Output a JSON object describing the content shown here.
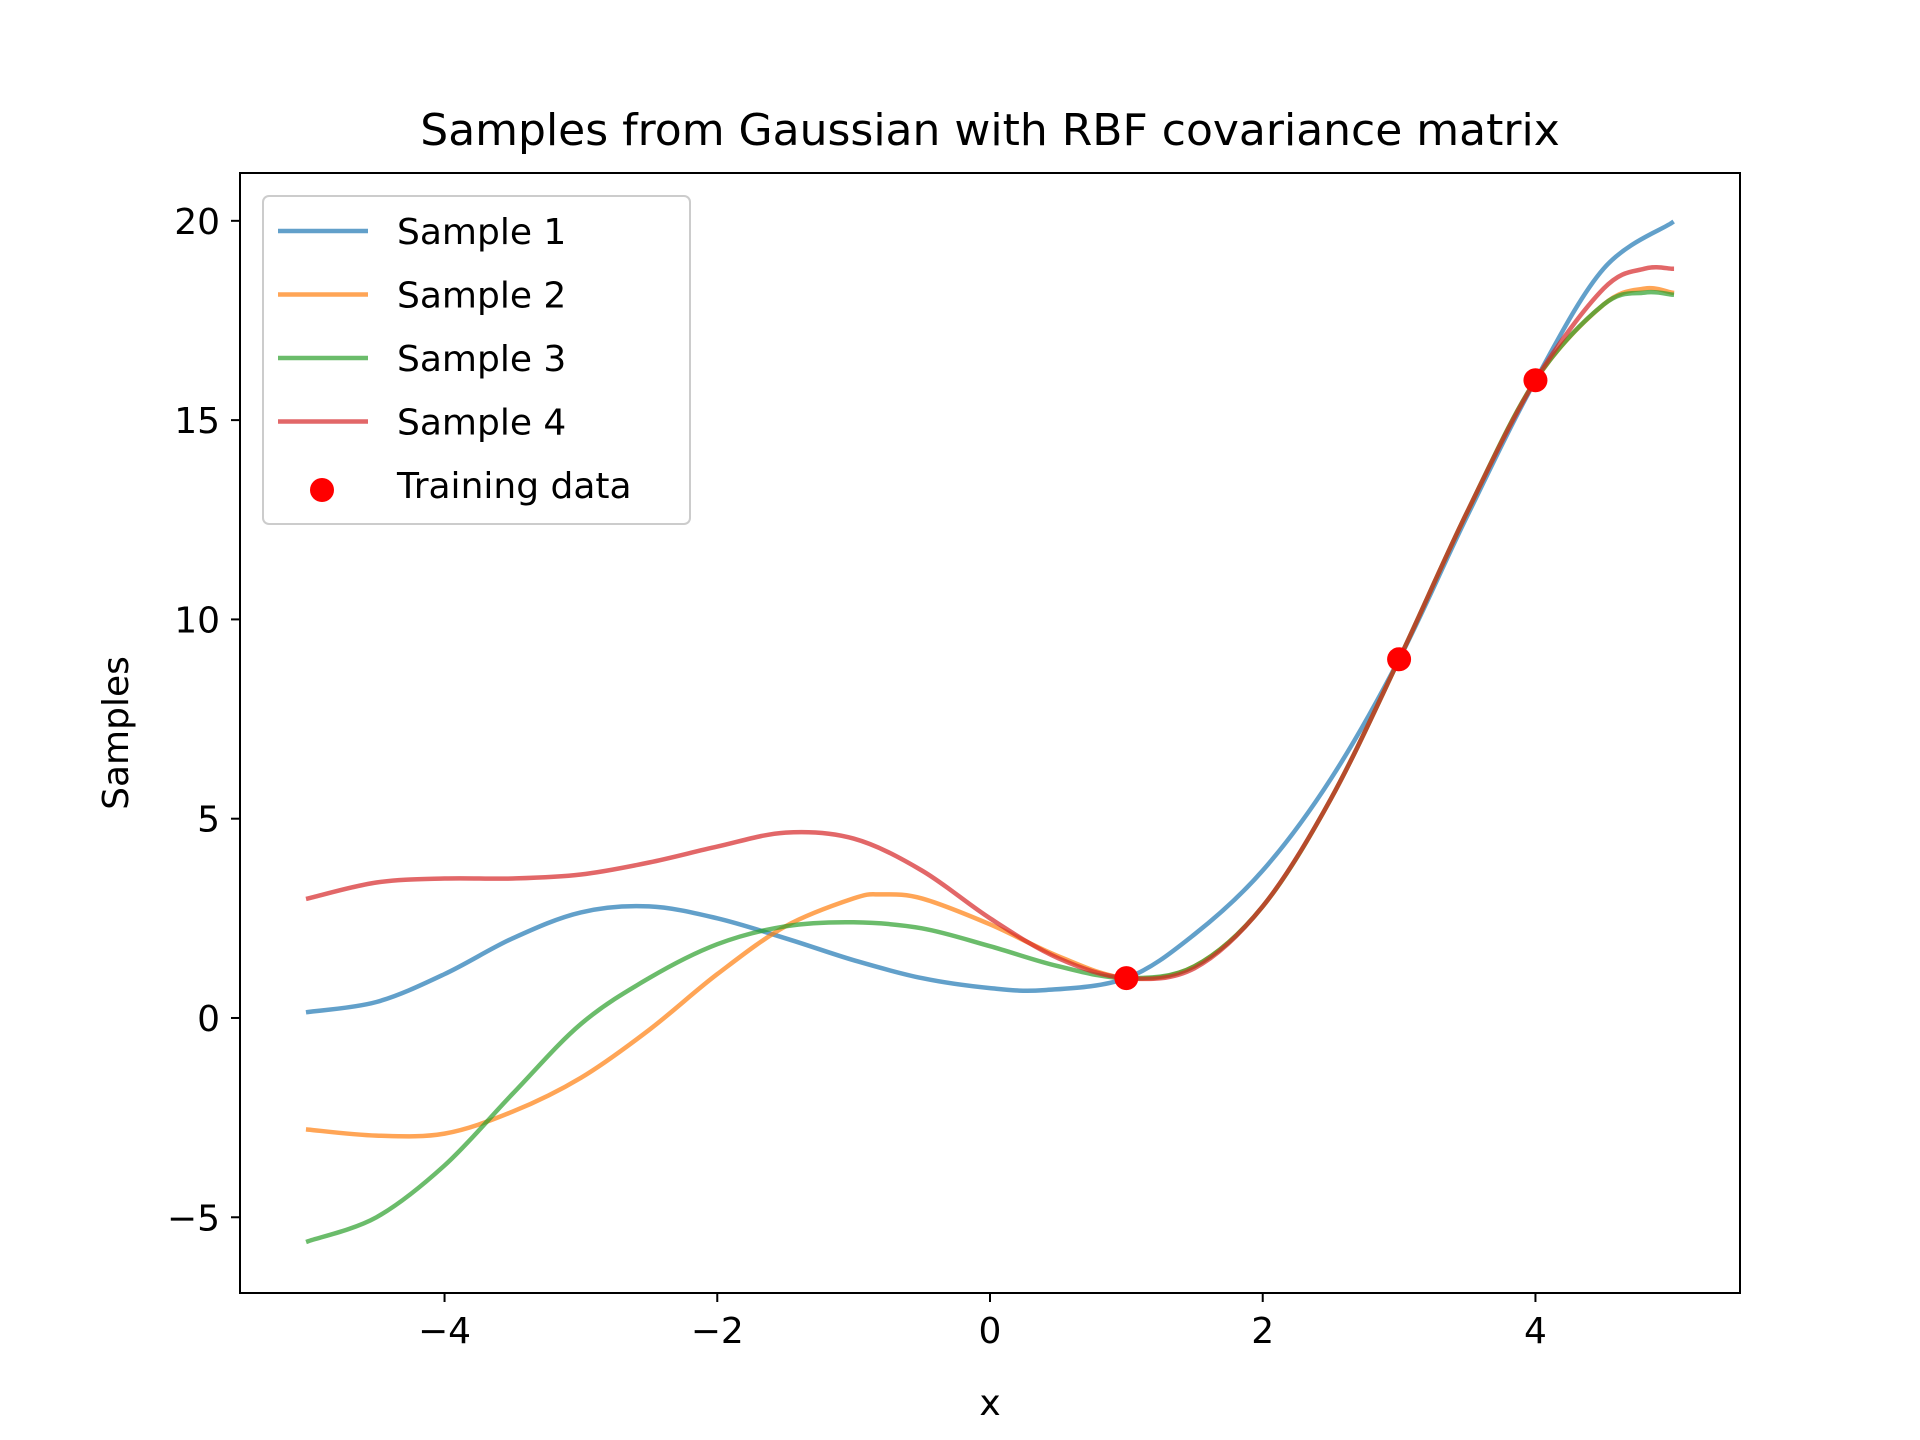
{
  "chart_data": {
    "type": "line",
    "title": "Samples from Gaussian with RBF covariance matrix",
    "xlabel": "x",
    "ylabel": "Samples",
    "xlim": [
      -5.5,
      5.5
    ],
    "ylim": [
      -6.9,
      21.2
    ],
    "xticks": [
      -4,
      -2,
      0,
      2,
      4
    ],
    "xtick_labels": [
      "−4",
      "−2",
      "0",
      "2",
      "4"
    ],
    "yticks": [
      -5,
      0,
      5,
      10,
      15,
      20
    ],
    "ytick_labels": [
      "−5",
      "0",
      "5",
      "10",
      "15",
      "20"
    ],
    "grid": false,
    "legend_position": "upper-left",
    "series": [
      {
        "name": "Sample 1",
        "color": "#1f77b4",
        "x": [
          -5,
          -4.5,
          -4,
          -3.5,
          -3,
          -2.5,
          -2,
          -1.5,
          -1,
          -0.5,
          0,
          0.4,
          1,
          1.5,
          2,
          2.5,
          3,
          3.5,
          4,
          4.5,
          5
        ],
        "y": [
          0.15,
          0.4,
          1.1,
          2.0,
          2.65,
          2.8,
          2.5,
          2.0,
          1.45,
          1.0,
          0.75,
          0.7,
          1.0,
          2.1,
          3.7,
          6.0,
          9.0,
          12.6,
          16.0,
          18.8,
          19.95
        ]
      },
      {
        "name": "Sample 2",
        "color": "#ff7f0e",
        "x": [
          -5,
          -4.5,
          -4,
          -3.5,
          -3,
          -2.5,
          -2,
          -1.5,
          -1,
          -0.8,
          -0.5,
          0,
          0.5,
          1,
          1.5,
          2,
          2.5,
          3,
          3.5,
          4,
          4.5,
          4.8,
          5
        ],
        "y": [
          -2.8,
          -2.95,
          -2.9,
          -2.35,
          -1.5,
          -0.3,
          1.1,
          2.3,
          3.0,
          3.1,
          3.0,
          2.35,
          1.55,
          1.0,
          1.3,
          2.8,
          5.5,
          9.0,
          12.7,
          16.0,
          17.9,
          18.3,
          18.2
        ]
      },
      {
        "name": "Sample 3",
        "color": "#2ca02c",
        "x": [
          -5,
          -4.5,
          -4,
          -3.5,
          -3,
          -2.5,
          -2,
          -1.5,
          -1,
          -0.5,
          0,
          0.5,
          1,
          1.5,
          2,
          2.5,
          3,
          3.5,
          4,
          4.5,
          4.8,
          5
        ],
        "y": [
          -5.6,
          -5.0,
          -3.7,
          -1.9,
          -0.15,
          1.0,
          1.85,
          2.3,
          2.4,
          2.25,
          1.8,
          1.3,
          1.0,
          1.3,
          2.8,
          5.5,
          9.0,
          12.7,
          16.0,
          17.9,
          18.2,
          18.15
        ]
      },
      {
        "name": "Sample 4",
        "color": "#d62728",
        "x": [
          -5,
          -4.5,
          -4,
          -3.5,
          -3,
          -2.5,
          -2,
          -1.5,
          -1,
          -0.5,
          0,
          0.5,
          1,
          1.5,
          2,
          2.5,
          3,
          3.5,
          4,
          4.5,
          4.8,
          5
        ],
        "y": [
          3.0,
          3.4,
          3.5,
          3.5,
          3.6,
          3.9,
          4.3,
          4.65,
          4.5,
          3.7,
          2.5,
          1.5,
          1.0,
          1.25,
          2.8,
          5.5,
          9.0,
          12.7,
          16.0,
          18.3,
          18.8,
          18.8
        ]
      }
    ],
    "scatter": {
      "name": "Training data",
      "color": "#ff0000",
      "x": [
        1,
        3,
        4
      ],
      "y": [
        1,
        9,
        16
      ]
    }
  }
}
